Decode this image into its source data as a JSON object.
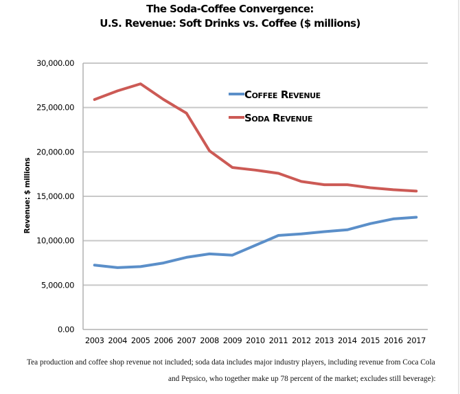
{
  "chart_data": {
    "type": "line",
    "title": "The Soda-Coffee Convergence:",
    "subtitle": "U.S. Revenue: Soft Drinks vs. Coffee ($ millions)",
    "xlabel": "",
    "ylabel": "Revenue: $ millions",
    "x": [
      "2003",
      "2004",
      "2005",
      "2006",
      "2007",
      "2008",
      "2009",
      "2010",
      "2011",
      "2012",
      "2013",
      "2014",
      "2015",
      "2016",
      "2017"
    ],
    "ylim": [
      0,
      30000
    ],
    "yticks": [
      0,
      5000,
      10000,
      15000,
      20000,
      25000,
      30000
    ],
    "ytick_labels": [
      "0.00",
      "5,000.00",
      "10,000.00",
      "15,000.00",
      "20,000.00",
      "25,000.00",
      "30,000.00"
    ],
    "grid": "horizontal",
    "legend_position": "upper-center-right",
    "series": [
      {
        "name": "Coffee Revenue",
        "color": "#5b8fc9",
        "values": [
          7250,
          6970,
          7080,
          7490,
          8130,
          8510,
          8370,
          9480,
          10590,
          10770,
          11020,
          11230,
          11920,
          12460,
          12640
        ]
      },
      {
        "name": "Soda Revenue",
        "color": "#cc5a55",
        "values": [
          25900,
          26880,
          27670,
          25910,
          24360,
          20130,
          18250,
          17950,
          17590,
          16670,
          16310,
          16310,
          15970,
          15740,
          15590
        ]
      }
    ]
  },
  "footnote": {
    "line1": "Tea production and coffee shop revenue not included; soda data includes major industry players, including revenue from Coca Cola",
    "line2": "and Pepsico, who together make up 78 percent of the market; excludes still beverage):"
  },
  "colors": {
    "gridline": "#c8c8c8",
    "axis": "#b0b0b0"
  }
}
